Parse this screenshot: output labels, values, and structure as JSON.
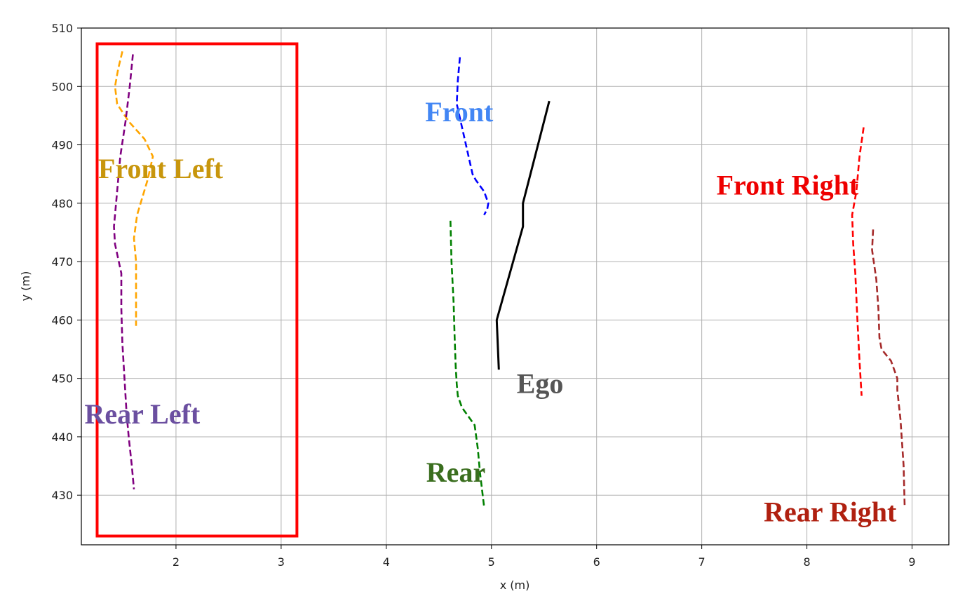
{
  "chart_data": {
    "type": "line",
    "xlabel": "x (m)",
    "ylabel": "y (m)",
    "xlim": [
      1.1,
      9.35
    ],
    "ylim": [
      421.5,
      510
    ],
    "xticks": [
      2,
      3,
      4,
      5,
      6,
      7,
      8,
      9
    ],
    "yticks": [
      430,
      440,
      450,
      460,
      470,
      480,
      490,
      500,
      510
    ],
    "grid": true,
    "highlight_box": {
      "x": [
        1.25,
        3.15
      ],
      "y": [
        423,
        507.3
      ],
      "color": "#ff0000"
    },
    "series": [
      {
        "name": "Front Left",
        "color": "#ffa500",
        "style": "dashed",
        "label_color": "#c8960c",
        "label_at": [
          1.26,
          484.3
        ],
        "x": [
          1.49,
          1.45,
          1.42,
          1.44,
          1.55,
          1.7,
          1.78,
          1.73,
          1.63,
          1.6,
          1.62,
          1.62,
          1.62
        ],
        "y": [
          506,
          503,
          500,
          497,
          494,
          491,
          488,
          484,
          478,
          474,
          470,
          465,
          459
        ]
      },
      {
        "name": "Rear Left",
        "color": "#800080",
        "style": "dashed",
        "label_color": "#6b4fa0",
        "label_at": [
          1.13,
          442.3
        ],
        "x": [
          1.59,
          1.56,
          1.52,
          1.47,
          1.44,
          1.41,
          1.42,
          1.48,
          1.48,
          1.49,
          1.51,
          1.53,
          1.55,
          1.58,
          1.6
        ],
        "y": [
          505.5,
          500,
          494,
          488,
          482,
          476,
          473,
          468,
          462,
          456,
          450,
          444,
          440,
          435,
          431
        ]
      },
      {
        "name": "Front",
        "color": "#0000ff",
        "style": "dashed",
        "label_color": "#4286f4",
        "label_at": [
          4.37,
          494.0
        ],
        "x": [
          4.7,
          4.68,
          4.67,
          4.72,
          4.77,
          4.82,
          4.85,
          4.93,
          4.97,
          4.96,
          4.93
        ],
        "y": [
          505,
          501,
          497,
          493,
          489,
          485,
          484,
          482,
          480,
          479,
          478
        ]
      },
      {
        "name": "Rear",
        "color": "#008000",
        "style": "dashed",
        "label_color": "#3a6e1e",
        "label_at": [
          4.38,
          432.3
        ],
        "x": [
          4.61,
          4.62,
          4.64,
          4.65,
          4.66,
          4.67,
          4.68,
          4.72,
          4.84,
          4.87,
          4.89,
          4.91,
          4.93
        ],
        "y": [
          477,
          470,
          463,
          457,
          452,
          449,
          447,
          445,
          442,
          438,
          434,
          431,
          428
        ]
      },
      {
        "name": "Ego",
        "color": "#000000",
        "style": "solid",
        "label_color": "#555555",
        "label_at": [
          5.24,
          447.5
        ],
        "x": [
          5.55,
          5.3,
          5.3,
          5.05,
          5.07
        ],
        "y": [
          497.5,
          480,
          476,
          460,
          451.5
        ]
      },
      {
        "name": "Front Right",
        "color": "#ff0000",
        "style": "dashed",
        "label_color": "#ee0000",
        "label_at": [
          7.14,
          481.5
        ],
        "x": [
          8.54,
          8.5,
          8.47,
          8.43,
          8.44,
          8.46,
          8.48,
          8.5,
          8.52
        ],
        "y": [
          493,
          488,
          482,
          478,
          473,
          468,
          460,
          453,
          447
        ]
      },
      {
        "name": "Rear Right",
        "color": "#a52a2a",
        "style": "dashed",
        "label_color": "#b02010",
        "label_at": [
          7.59,
          425.5
        ],
        "x": [
          8.63,
          8.62,
          8.66,
          8.68,
          8.69,
          8.71,
          8.8,
          8.86,
          8.86,
          8.89,
          8.92,
          8.93
        ],
        "y": [
          475.5,
          472,
          467,
          462,
          457,
          455,
          453,
          450,
          448,
          443,
          435,
          428
        ]
      }
    ]
  }
}
